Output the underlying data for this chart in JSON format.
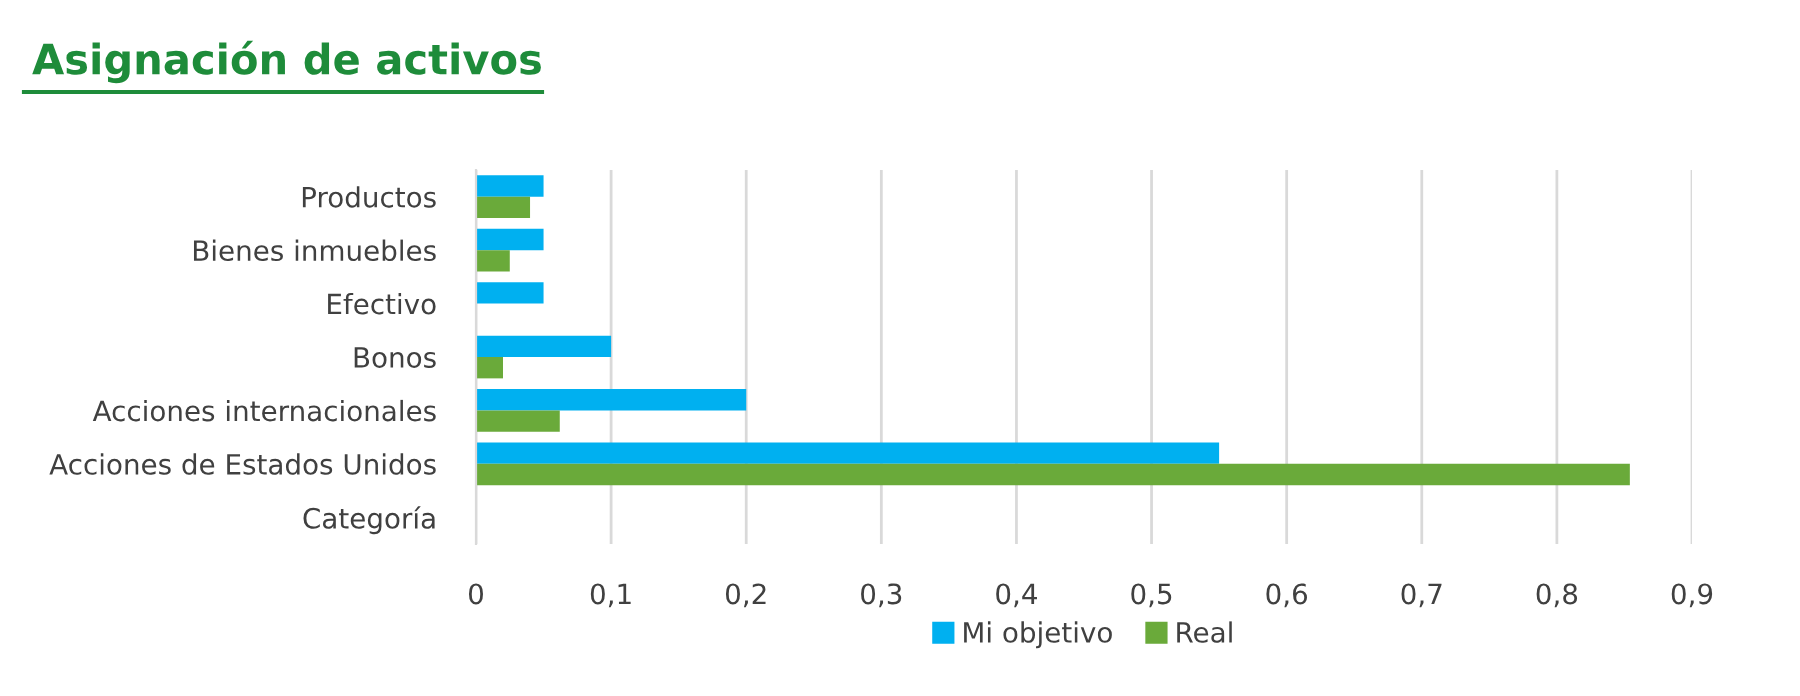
{
  "chart_data": {
    "type": "bar",
    "orientation": "horizontal",
    "title": "Asignación de activos",
    "categories": [
      "Productos",
      "Bienes inmuebles",
      "Efectivo",
      "Bonos",
      "Acciones internacionales",
      "Acciones de Estados Unidos",
      "Categoría"
    ],
    "series": [
      {
        "name": "Mi objetivo",
        "color": "#00b0f0",
        "values": [
          0.05,
          0.05,
          0.05,
          0.1,
          0.2,
          0.55,
          null
        ]
      },
      {
        "name": "Real",
        "color": "#6aaa3a",
        "values": [
          0.04,
          0.025,
          null,
          0.02,
          0.062,
          0.854,
          null
        ]
      }
    ],
    "xlim": [
      0,
      0.9
    ],
    "xticks": [
      0,
      {
        "value": 0.1,
        "label": "0,1"
      },
      {
        "value": 0.2,
        "label": "0,2"
      },
      {
        "value": 0.3,
        "label": "0,3"
      },
      {
        "value": 0.4,
        "label": "0,4"
      },
      {
        "value": 0.5,
        "label": "0,5"
      },
      {
        "value": 0.6,
        "label": "0,6"
      },
      {
        "value": 0.7,
        "label": "0,7"
      },
      {
        "value": 0.8,
        "label": "0,8"
      },
      {
        "value": 0.9,
        "label": "0,9"
      }
    ],
    "grid": "x",
    "legend": "bottom"
  }
}
